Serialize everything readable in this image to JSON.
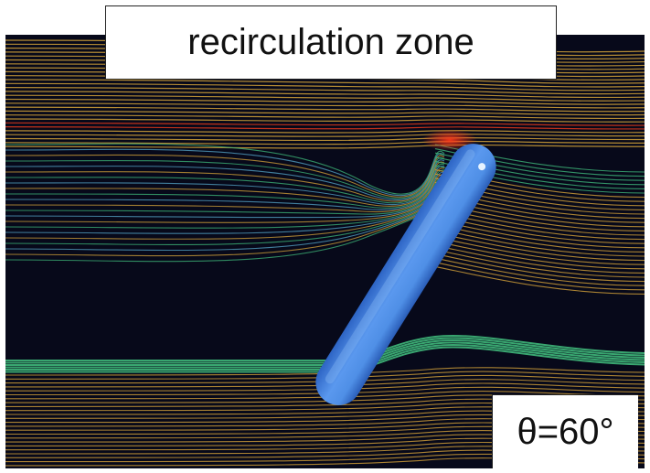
{
  "annotation": {
    "title": "recirculation zone",
    "angle_label": "θ=60°"
  },
  "scene": {
    "background_color": "#07091a",
    "cylinder_color": "#4f8fe6",
    "cylinder_highlight": "#a9d2ff",
    "streamline_colors": {
      "freestream": "#d4a33a",
      "slow": "#3fb87a",
      "stagnation": "#e23a1c",
      "wake": "#56a6c8"
    },
    "cylinder_angle_deg": 60
  }
}
